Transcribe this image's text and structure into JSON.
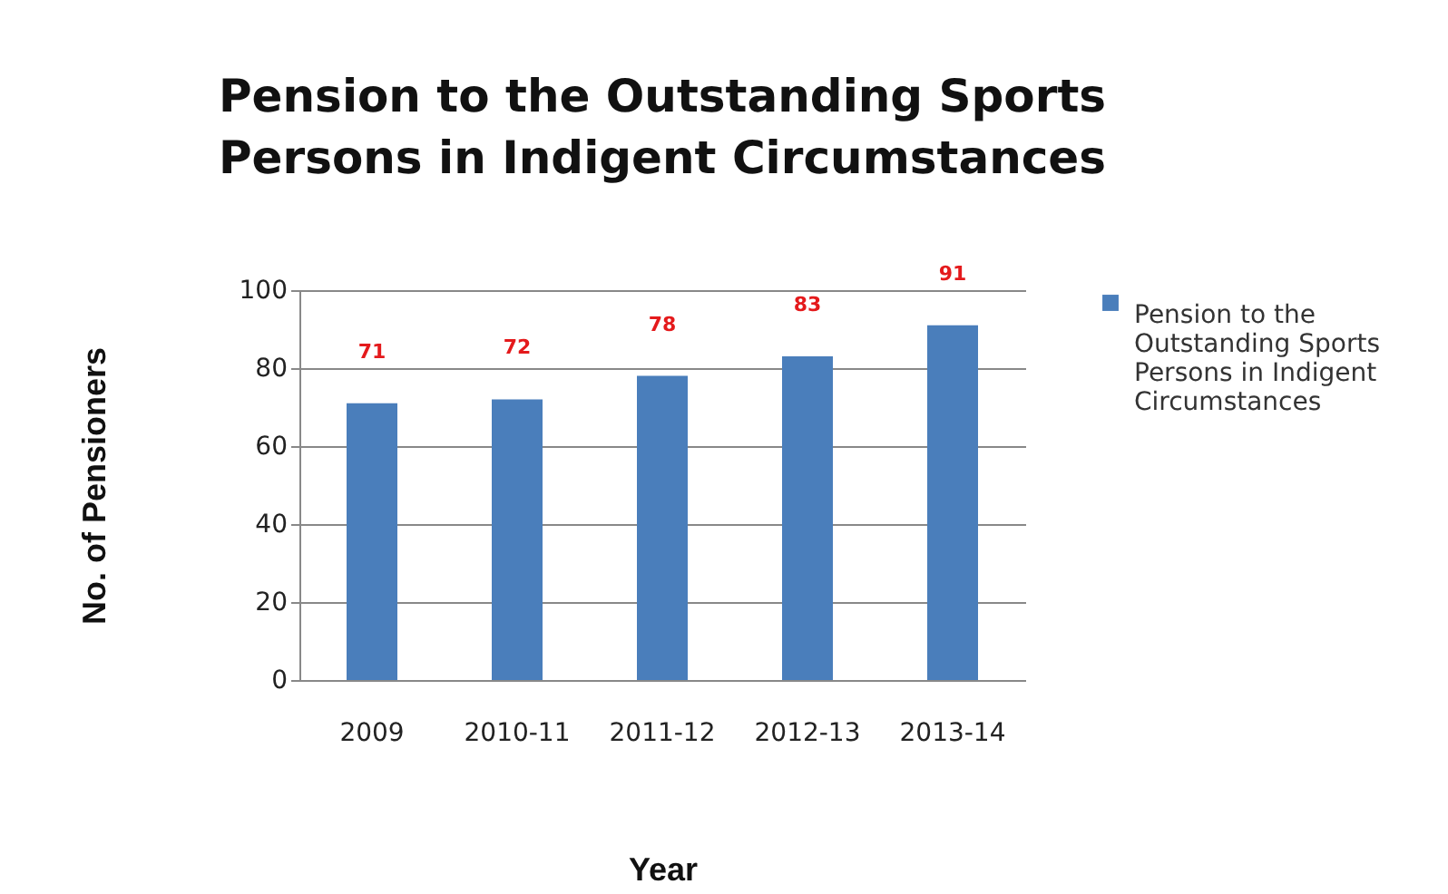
{
  "chart_data": {
    "type": "bar",
    "title": "Pension to the Outstanding Sports Persons in Indigent Circumstances",
    "xlabel": "Year",
    "ylabel": "No. of  Pensioners",
    "categories": [
      "2009",
      "2010-11",
      "2011-12",
      "2012-13",
      "2013-14"
    ],
    "series": [
      {
        "name": "Pension to the Outstanding Sports Persons in Indigent Circumstances",
        "color": "#4a7ebb",
        "values": [
          71,
          72,
          78,
          83,
          91
        ]
      }
    ],
    "ylim": [
      0,
      100
    ],
    "yticks": [
      0,
      20,
      40,
      60,
      80,
      100
    ],
    "grid": "y",
    "legend": "right",
    "data_labels": true
  }
}
